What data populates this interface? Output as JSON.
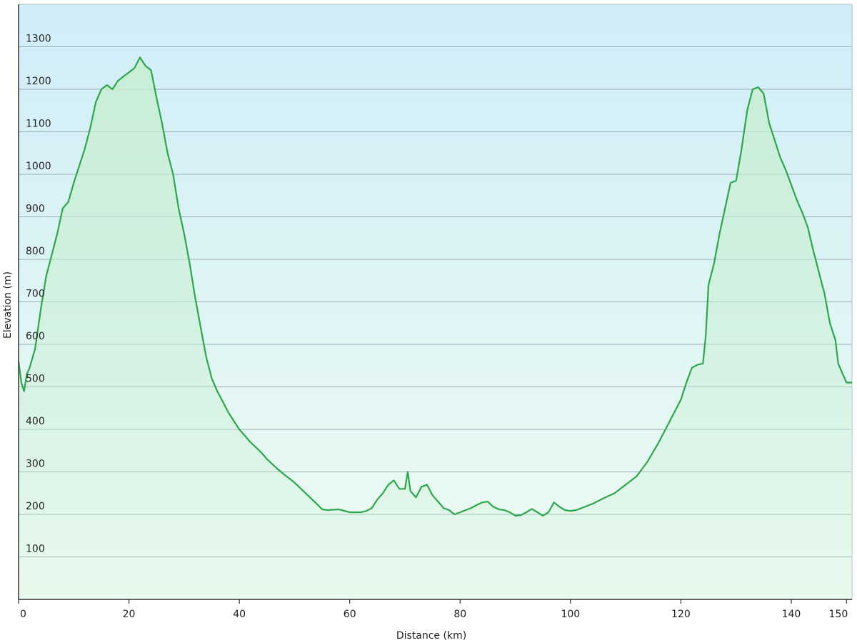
{
  "chart_data": {
    "type": "area",
    "title": "",
    "xlabel": "Distance  (km)",
    "ylabel": "Elevation (m)",
    "xlim": [
      0,
      151
    ],
    "ylim": [
      0,
      1400
    ],
    "x_ticks": [
      0,
      20,
      40,
      60,
      80,
      100,
      120,
      140,
      150
    ],
    "x_tick_labels": [
      "0",
      "20",
      "40",
      "60",
      "80",
      "100",
      "120",
      "140",
      "150"
    ],
    "y_ticks": [
      100,
      200,
      300,
      400,
      500,
      600,
      700,
      800,
      900,
      1000,
      1100,
      1200,
      1300
    ],
    "y_tick_labels": [
      "100",
      "200",
      "300",
      "400",
      "500",
      "600",
      "700",
      "800",
      "900",
      "1000",
      "1100",
      "1200",
      "1300"
    ],
    "grid": true,
    "legend": "none",
    "colors": {
      "line": "#2aa84a",
      "fill": "#c8eed0",
      "bg_top": "#d0edf8",
      "bg_bottom": "#eefcf2",
      "grid": "#9aaab4"
    },
    "series": [
      {
        "x": [
          0,
          0.5,
          1,
          1.5,
          2,
          3,
          4,
          5,
          6,
          7,
          8,
          9,
          10,
          11,
          12,
          13,
          14,
          15,
          16,
          17,
          18,
          19,
          20,
          21,
          22,
          23,
          24,
          25,
          26,
          27,
          28,
          29,
          30,
          31,
          32,
          33,
          34,
          35,
          36,
          37,
          38,
          39,
          40,
          41,
          42,
          43,
          44,
          45,
          46,
          47,
          48,
          49,
          50,
          52,
          54,
          55,
          56,
          58,
          60,
          62,
          63,
          64,
          65,
          66,
          67,
          68,
          69,
          70,
          70.5,
          71,
          72,
          73,
          74,
          75,
          76,
          77,
          78,
          79,
          80,
          81,
          82,
          83,
          84,
          85,
          86,
          87,
          88,
          89,
          90,
          91,
          92,
          93,
          94,
          95,
          96,
          97,
          98,
          99,
          100,
          101,
          102,
          104,
          106,
          108,
          110,
          112,
          114,
          116,
          118,
          120,
          121,
          122,
          123,
          124,
          124.5,
          125,
          126,
          127,
          128,
          129,
          130,
          131,
          132,
          133,
          134,
          135,
          136,
          137,
          138,
          139,
          140,
          141,
          142,
          143,
          144,
          145,
          146,
          147,
          148,
          148.5,
          149,
          150,
          151
        ],
        "y": [
          560,
          510,
          490,
          530,
          545,
          590,
          680,
          760,
          810,
          860,
          920,
          935,
          980,
          1020,
          1060,
          1110,
          1170,
          1200,
          1210,
          1200,
          1220,
          1230,
          1240,
          1250,
          1275,
          1255,
          1245,
          1180,
          1120,
          1050,
          1000,
          920,
          860,
          790,
          710,
          640,
          570,
          520,
          490,
          465,
          440,
          420,
          400,
          385,
          370,
          358,
          345,
          330,
          318,
          306,
          295,
          285,
          275,
          250,
          225,
          212,
          210,
          212,
          205,
          205,
          208,
          215,
          235,
          250,
          270,
          280,
          260,
          260,
          300,
          255,
          240,
          265,
          270,
          245,
          230,
          215,
          210,
          200,
          205,
          210,
          215,
          222,
          228,
          230,
          218,
          212,
          210,
          205,
          197,
          198,
          205,
          213,
          205,
          197,
          205,
          228,
          218,
          210,
          208,
          210,
          215,
          225,
          238,
          250,
          270,
          290,
          325,
          370,
          420,
          470,
          510,
          545,
          552,
          555,
          620,
          740,
          790,
          860,
          920,
          980,
          985,
          1060,
          1150,
          1200,
          1205,
          1190,
          1120,
          1080,
          1040,
          1010,
          975,
          940,
          910,
          875,
          820,
          770,
          720,
          650,
          610,
          555,
          540,
          510,
          510
        ]
      }
    ]
  }
}
